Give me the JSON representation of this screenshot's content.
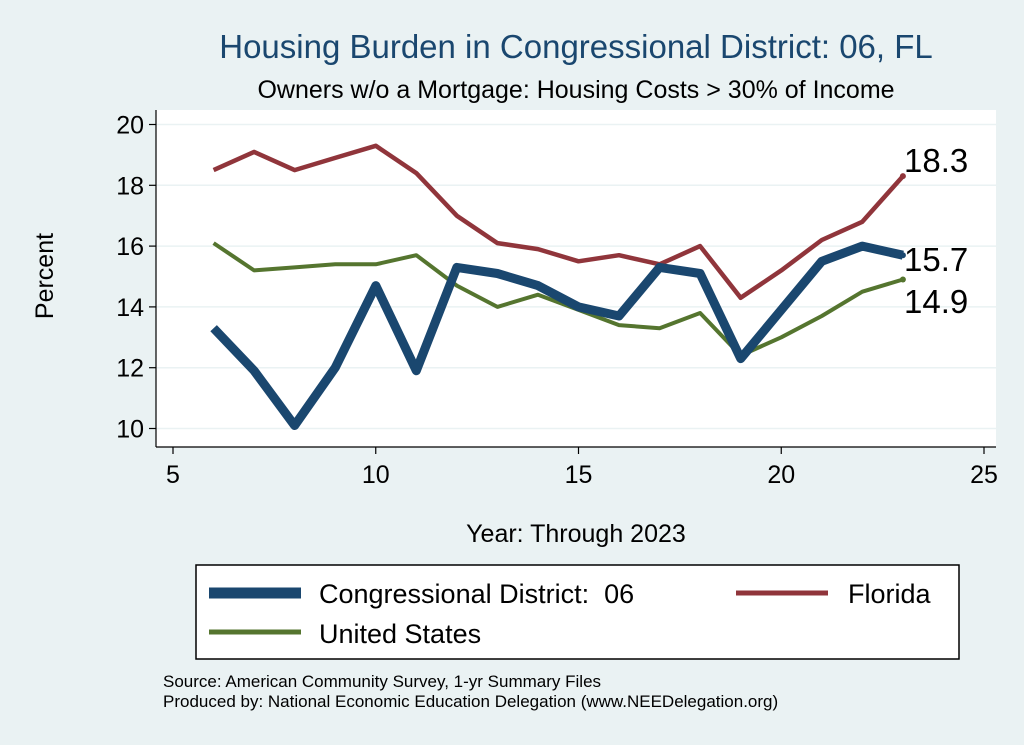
{
  "chart_data": {
    "type": "line",
    "title": "Housing Burden in Congressional District:  06, FL",
    "subtitle": "Owners w/o a Mortgage: Housing Costs > 30% of Income",
    "xlabel": "Year: Through 2023",
    "ylabel": "Percent",
    "xlim": [
      5,
      25
    ],
    "ylim": [
      10,
      20
    ],
    "x_ticks": [
      "5",
      "10",
      "15",
      "20",
      "25"
    ],
    "y_ticks": [
      "10",
      "12",
      "14",
      "16",
      "18",
      "20"
    ],
    "grid": true,
    "legend_position": "bottom",
    "series": [
      {
        "name": "Congressional District:  06",
        "color": "#1a476f",
        "x": [
          6,
          7,
          8,
          9,
          10,
          11,
          12,
          13,
          14,
          15,
          16,
          17,
          18,
          19,
          20,
          21,
          22,
          23
        ],
        "values": [
          13.3,
          11.9,
          10.1,
          12.0,
          14.7,
          11.9,
          15.3,
          15.1,
          14.7,
          14.0,
          13.7,
          15.3,
          15.1,
          12.3,
          13.9,
          15.5,
          16.0,
          15.7
        ],
        "end_label": "15.7"
      },
      {
        "name": "Florida",
        "color": "#90353b",
        "x": [
          6,
          7,
          8,
          9,
          10,
          11,
          12,
          13,
          14,
          15,
          16,
          17,
          18,
          19,
          20,
          21,
          22,
          23
        ],
        "values": [
          18.5,
          19.1,
          18.5,
          18.9,
          19.3,
          18.4,
          17.0,
          16.1,
          15.9,
          15.5,
          15.7,
          15.4,
          16.0,
          14.3,
          15.2,
          16.2,
          16.8,
          18.3
        ],
        "end_label": "18.3"
      },
      {
        "name": "United States",
        "color": "#55752f",
        "x": [
          6,
          7,
          8,
          9,
          10,
          11,
          12,
          13,
          14,
          15,
          16,
          17,
          18,
          19,
          20,
          21,
          22,
          23
        ],
        "values": [
          16.1,
          15.2,
          15.3,
          15.4,
          15.4,
          15.7,
          14.7,
          14.0,
          14.4,
          13.9,
          13.4,
          13.3,
          13.8,
          12.4,
          13.0,
          13.7,
          14.5,
          14.9
        ],
        "end_label": "14.9"
      }
    ],
    "notes": [
      "Source: American Community Survey, 1-yr Summary Files",
      "Produced by: National Economic Education Delegation (www.NEEDelegation.org)"
    ]
  }
}
